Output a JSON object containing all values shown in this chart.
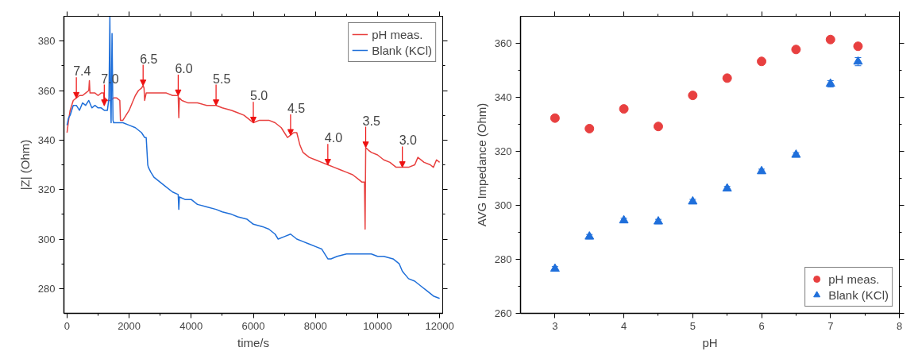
{
  "chart_data": [
    {
      "type": "line",
      "xlabel": "time/s",
      "ylabel": "|Z| (Ohm)",
      "xlim": [
        -100,
        12100
      ],
      "ylim": [
        270,
        390
      ],
      "xticks": [
        0,
        2000,
        4000,
        6000,
        8000,
        10000,
        12000
      ],
      "yticks": [
        280,
        300,
        320,
        340,
        360,
        380
      ],
      "grid": false,
      "legend": "top right",
      "series": [
        {
          "name": "pH meas.",
          "color": "#e8403f",
          "x": [
            0,
            50,
            100,
            200,
            300,
            400,
            500,
            600,
            700,
            720,
            740,
            800,
            900,
            1000,
            1100,
            1180,
            1200,
            1220,
            1300,
            1400,
            1500,
            1600,
            1700,
            1720,
            1800,
            1900,
            2000,
            2100,
            2200,
            2300,
            2400,
            2450,
            2480,
            2500,
            2550,
            2600,
            2800,
            3000,
            3200,
            3400,
            3580,
            3600,
            3620,
            3700,
            3900,
            4200,
            4500,
            4800,
            5000,
            5300,
            5500,
            5700,
            5900,
            6000,
            6200,
            6500,
            6700,
            6900,
            7000,
            7100,
            7200,
            7300,
            7400,
            7500,
            7600,
            7800,
            8000,
            8200,
            8400,
            8600,
            8800,
            9000,
            9200,
            9400,
            9500,
            9580,
            9600,
            9620,
            9700,
            9800,
            10000,
            10200,
            10400,
            10600,
            10800,
            11000,
            11200,
            11300,
            11500,
            11700,
            11800,
            11900,
            12000
          ],
          "values": [
            343,
            348,
            352,
            356,
            357,
            358,
            358,
            359,
            360,
            364,
            359,
            359,
            359,
            358,
            359,
            359,
            354,
            357,
            356,
            356,
            357,
            357,
            356,
            348,
            348,
            350,
            352,
            355,
            358,
            360,
            361,
            362,
            361,
            356,
            359,
            359,
            359,
            359,
            359,
            358,
            358,
            349,
            357,
            356,
            355,
            355,
            354,
            354,
            353,
            352,
            351,
            350,
            348,
            347,
            348,
            348,
            347,
            345,
            343,
            341,
            342,
            343,
            343,
            338,
            335,
            333,
            332,
            331,
            330,
            329,
            328,
            327,
            326,
            324,
            323,
            323,
            304,
            337,
            336,
            335,
            334,
            332,
            331,
            329,
            329,
            329,
            330,
            333,
            331,
            330,
            329,
            332,
            331
          ]
        },
        {
          "name": "Blank (KCl)",
          "color": "#1f6fd9",
          "x": [
            0,
            50,
            100,
            200,
            300,
            400,
            500,
            600,
            700,
            800,
            900,
            1000,
            1100,
            1200,
            1300,
            1350,
            1380,
            1400,
            1420,
            1450,
            1480,
            1500,
            1520,
            1550,
            1600,
            1800,
            2000,
            2200,
            2400,
            2500,
            2550,
            2600,
            2620,
            2700,
            2800,
            3000,
            3200,
            3400,
            3580,
            3600,
            3620,
            3800,
            4000,
            4200,
            4500,
            4800,
            5000,
            5300,
            5500,
            5800,
            6000,
            6300,
            6500,
            6700,
            6800,
            7000,
            7200,
            7400,
            7600,
            7800,
            8000,
            8200,
            8400,
            8500,
            8700,
            9000,
            9300,
            9500,
            9800,
            10000,
            10200,
            10500,
            10700,
            10800,
            11000,
            11200,
            11400,
            11600,
            11800,
            12000
          ],
          "values": [
            346,
            349,
            350,
            354,
            354,
            352,
            355,
            354,
            356,
            353,
            354,
            353,
            353,
            352,
            352,
            357,
            390,
            356,
            347,
            383,
            348,
            347,
            347,
            347,
            347,
            347,
            346,
            345,
            343,
            341,
            341,
            330,
            329,
            327,
            325,
            323,
            321,
            319,
            318,
            312,
            317,
            316,
            316,
            314,
            313,
            312,
            311,
            310,
            309,
            308,
            306,
            305,
            304,
            302,
            300,
            301,
            302,
            300,
            299,
            298,
            297,
            296,
            292,
            292,
            293,
            294,
            294,
            294,
            294,
            293,
            293,
            292,
            290,
            287,
            284,
            283,
            281,
            279,
            277,
            276
          ]
        }
      ],
      "annotations": [
        {
          "text": "7.4",
          "x": 300,
          "y": 357
        },
        {
          "text": "7.0",
          "x": 1200,
          "y": 354
        },
        {
          "text": "6.5",
          "x": 2450,
          "y": 362
        },
        {
          "text": "6.0",
          "x": 3580,
          "y": 358
        },
        {
          "text": "5.5",
          "x": 4800,
          "y": 354
        },
        {
          "text": "5.0",
          "x": 6000,
          "y": 347
        },
        {
          "text": "4.5",
          "x": 7200,
          "y": 342
        },
        {
          "text": "4.0",
          "x": 8400,
          "y": 330
        },
        {
          "text": "3.5",
          "x": 9620,
          "y": 337
        },
        {
          "text": "3.0",
          "x": 10800,
          "y": 329
        }
      ]
    },
    {
      "type": "scatter",
      "xlabel": "pH",
      "ylabel": "AVG Impedance (Ohm)",
      "xlim": [
        2.5,
        8
      ],
      "ylim": [
        260,
        370
      ],
      "xticks": [
        3,
        4,
        5,
        6,
        7,
        8
      ],
      "yticks": [
        260,
        280,
        300,
        320,
        340,
        360
      ],
      "grid": false,
      "legend": "bottom right",
      "x": [
        3,
        3.5,
        4,
        4.5,
        5,
        5.5,
        6,
        6.5,
        7,
        7.4
      ],
      "series": [
        {
          "name": "pH meas.",
          "color": "#e84040",
          "marker": "circle",
          "values": [
            332.3,
            328.4,
            335.7,
            329.2,
            340.7,
            347.1,
            353.3,
            357.7,
            361.4,
            358.9
          ]
        },
        {
          "name": "Blank (KCl)",
          "color": "#1f6fdb",
          "marker": "triangle",
          "values": [
            276.5,
            288.4,
            294.4,
            294.0,
            301.4,
            306.2,
            312.6,
            318.7,
            345.0,
            353.2
          ],
          "errors": [
            0.8,
            0.8,
            0.8,
            0.8,
            0.8,
            0.8,
            0.8,
            0.8,
            1.2,
            1.5
          ]
        }
      ]
    }
  ]
}
